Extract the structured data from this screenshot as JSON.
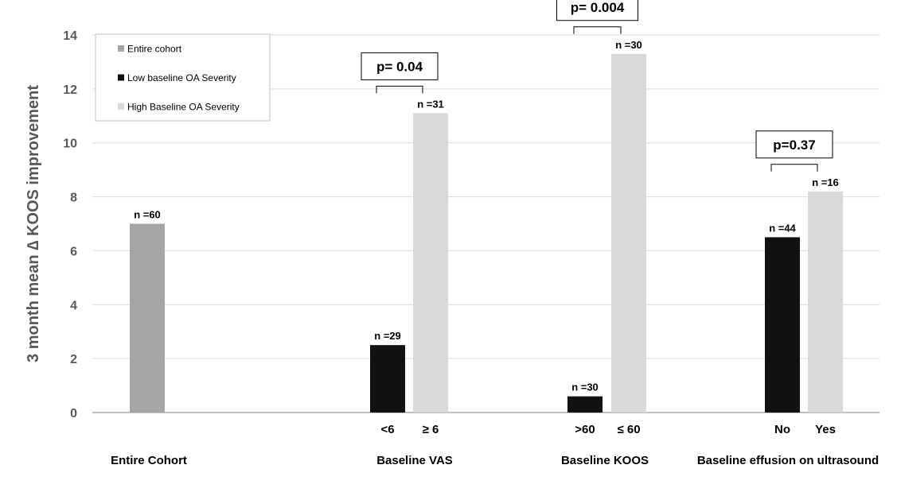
{
  "chart_data": {
    "type": "bar",
    "ylabel": "3 month mean ∆ KOOS improvement",
    "ylim": [
      0,
      14
    ],
    "yticks": [
      0,
      2,
      4,
      6,
      8,
      10,
      12,
      14
    ],
    "grid": true,
    "legend_position": "top-left",
    "legend": [
      {
        "name": "Entire cohort",
        "color": "#a6a6a6"
      },
      {
        "name": "Low baseline OA Severity",
        "color": "#111111"
      },
      {
        "name": "High Baseline OA Severity",
        "color": "#d9d9d9"
      }
    ],
    "groups": [
      {
        "label": "Entire Cohort",
        "bars": [
          {
            "x": "",
            "value": 7.0,
            "n_label": "n =60",
            "series": 0
          }
        ]
      },
      {
        "label": "Baseline VAS",
        "p_label": "p= 0.04",
        "bars": [
          {
            "x": "<6",
            "value": 2.5,
            "n_label": "n =29",
            "series": 1
          },
          {
            "x": "≥ 6",
            "value": 11.1,
            "n_label": "n =31",
            "series": 2
          }
        ]
      },
      {
        "label": "Baseline KOOS",
        "p_label": "p= 0.004",
        "bars": [
          {
            "x": ">60",
            "value": 0.6,
            "n_label": "n =30",
            "series": 1
          },
          {
            "x": "≤ 60",
            "value": 13.3,
            "n_label": "n =30",
            "series": 2
          }
        ]
      },
      {
        "label": "Baseline effusion on ultrasound",
        "p_label": "p=0.37",
        "bars": [
          {
            "x": "No",
            "value": 6.5,
            "n_label": "n =44",
            "series": 1
          },
          {
            "x": "Yes",
            "value": 8.2,
            "n_label": "n =16",
            "series": 2
          }
        ]
      }
    ]
  }
}
